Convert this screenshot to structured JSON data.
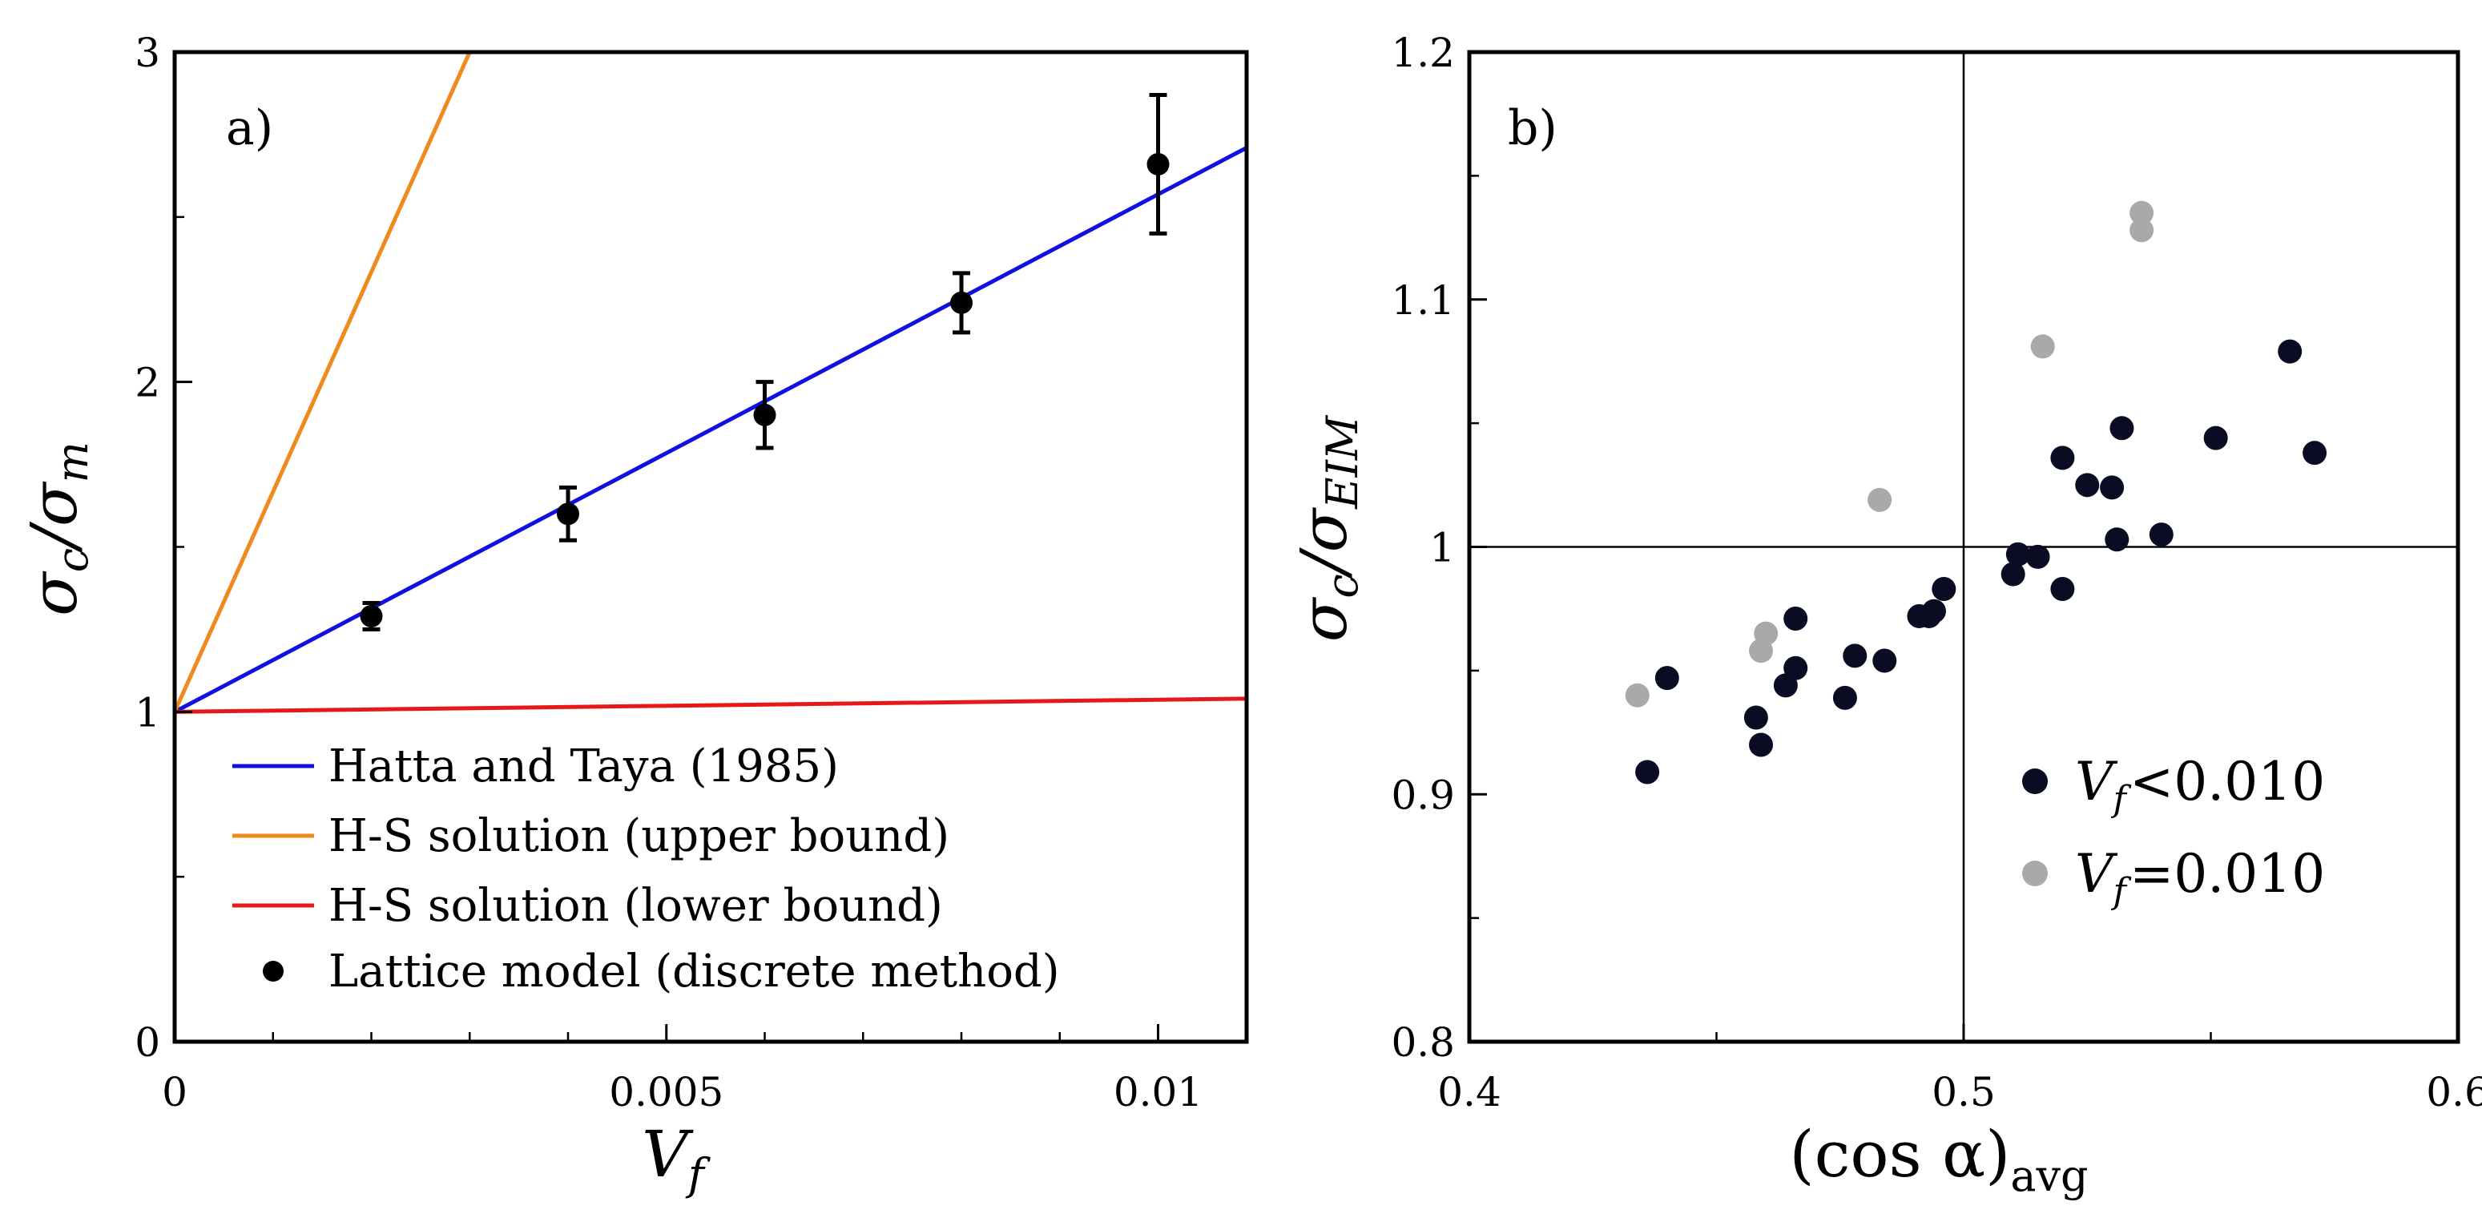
{
  "chart_data": [
    {
      "id": "a",
      "type": "line",
      "panel_label": "a)",
      "xlabel": "V",
      "xlabel_sub": "f",
      "ylabel": "σ",
      "ylabel_sub1": "c",
      "ylabel_slash": "/σ",
      "ylabel_sub2": "m",
      "xlim": [
        0,
        0.0109
      ],
      "ylim": [
        0,
        3
      ],
      "xticks": [
        {
          "value": 0,
          "label": "0"
        },
        {
          "value": 0.005,
          "label": "0.005"
        },
        {
          "value": 0.01,
          "label": "0.01"
        }
      ],
      "xminor": [
        0.001,
        0.002,
        0.003,
        0.004,
        0.006,
        0.007,
        0.008,
        0.009
      ],
      "yticks": [
        {
          "value": 0,
          "label": "0"
        },
        {
          "value": 1,
          "label": "1"
        },
        {
          "value": 2,
          "label": "2"
        },
        {
          "value": 3,
          "label": "3"
        }
      ],
      "yminor": [
        0.5,
        1.5,
        2.5
      ],
      "series": [
        {
          "name": "Hatta and Taya (1985)",
          "kind": "line",
          "color": "#1010e0",
          "x": [
            0,
            0.0109
          ],
          "y": [
            1.0,
            2.71
          ]
        },
        {
          "name": "H-S solution (upper bound)",
          "kind": "line",
          "color": "#f08a1c",
          "x": [
            0,
            0.003
          ],
          "y": [
            1.0,
            3.0
          ]
        },
        {
          "name": "H-S solution (lower bound)",
          "kind": "line",
          "color": "#e81818",
          "x": [
            0,
            0.0109
          ],
          "y": [
            1.0,
            1.04
          ]
        },
        {
          "name": "Lattice model (discrete method)",
          "kind": "errorbar",
          "color": "#000000",
          "x": [
            0.002,
            0.004,
            0.006,
            0.008,
            0.01
          ],
          "y": [
            1.29,
            1.6,
            1.9,
            2.24,
            2.66
          ],
          "yerr": [
            0.04,
            0.08,
            0.1,
            0.09,
            0.21
          ]
        }
      ],
      "legend_position": "bottom-left"
    },
    {
      "id": "b",
      "type": "scatter",
      "panel_label": "b)",
      "xlabel": "(cos α)",
      "xlabel_sub": "avg",
      "ylabel": "σ",
      "ylabel_sub1": "c",
      "ylabel_slash": "/σ",
      "ylabel_sub2": "EIM",
      "xlim": [
        0.4,
        0.6
      ],
      "ylim": [
        0.8,
        1.2
      ],
      "xticks": [
        {
          "value": 0.4,
          "label": "0.4"
        },
        {
          "value": 0.5,
          "label": "0.5"
        },
        {
          "value": 0.6,
          "label": "0.6"
        }
      ],
      "xminor": [
        0.45,
        0.55
      ],
      "yticks": [
        {
          "value": 0.8,
          "label": "0.8"
        },
        {
          "value": 0.9,
          "label": "0.9"
        },
        {
          "value": 1.0,
          "label": "1"
        },
        {
          "value": 1.1,
          "label": "1.1"
        },
        {
          "value": 1.2,
          "label": "1.2"
        }
      ],
      "yminor": [
        0.85,
        0.95,
        1.05,
        1.15
      ],
      "reference_lines": {
        "x": 0.5,
        "y": 1.0
      },
      "series": [
        {
          "name": "V_f < 0.010",
          "legend_var": "V",
          "legend_sub": "f",
          "legend_rel": "<0.010",
          "color": "#0a0c24",
          "points": [
            [
              0.436,
              0.909
            ],
            [
              0.44,
              0.947
            ],
            [
              0.458,
              0.931
            ],
            [
              0.459,
              0.92
            ],
            [
              0.464,
              0.944
            ],
            [
              0.466,
              0.951
            ],
            [
              0.466,
              0.971
            ],
            [
              0.476,
              0.939
            ],
            [
              0.478,
              0.956
            ],
            [
              0.484,
              0.954
            ],
            [
              0.491,
              0.972
            ],
            [
              0.493,
              0.972
            ],
            [
              0.494,
              0.974
            ],
            [
              0.496,
              0.983
            ],
            [
              0.51,
              0.989
            ],
            [
              0.511,
              0.997
            ],
            [
              0.515,
              0.996
            ],
            [
              0.52,
              0.983
            ],
            [
              0.52,
              1.036
            ],
            [
              0.525,
              1.025
            ],
            [
              0.53,
              1.024
            ],
            [
              0.531,
              1.003
            ],
            [
              0.532,
              1.048
            ],
            [
              0.54,
              1.005
            ],
            [
              0.551,
              1.044
            ],
            [
              0.566,
              1.079
            ],
            [
              0.571,
              1.038
            ]
          ]
        },
        {
          "name": "V_f = 0.010",
          "legend_var": "V",
          "legend_sub": "f",
          "legend_rel": "=0.010",
          "color": "#a9a9a9",
          "points": [
            [
              0.434,
              0.94
            ],
            [
              0.459,
              0.958
            ],
            [
              0.46,
              0.965
            ],
            [
              0.483,
              1.019
            ],
            [
              0.516,
              1.081
            ],
            [
              0.536,
              1.135
            ],
            [
              0.536,
              1.128
            ]
          ]
        }
      ],
      "legend_position": "bottom-right"
    }
  ]
}
